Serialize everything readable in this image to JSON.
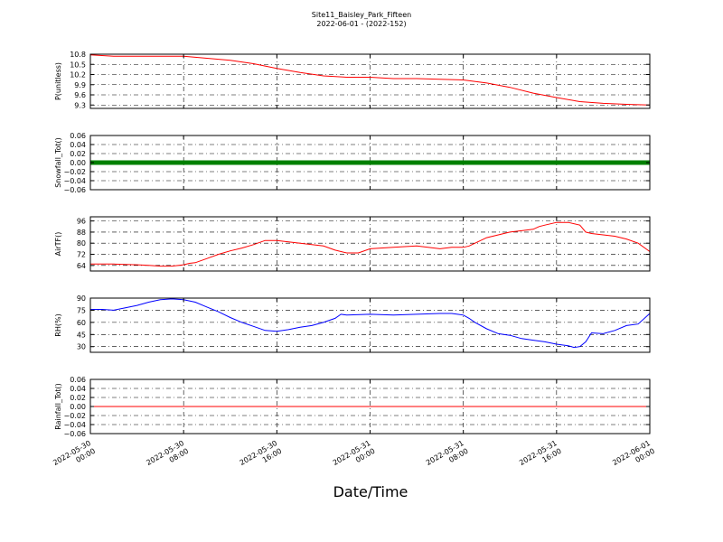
{
  "chart_data": {
    "type": "line",
    "title": "Site11_Baisley_Park_Fifteen",
    "subtitle": "2022-06-01 - (2022-152)",
    "xlabel": "Date/Time",
    "xlim_hours": [
      0,
      48
    ],
    "x_ticks": [
      {
        "h": 0,
        "l1": "2022-05-30",
        "l2": "00:00"
      },
      {
        "h": 8,
        "l1": "2022-05-30",
        "l2": "08:00"
      },
      {
        "h": 16,
        "l1": "2022-05-30",
        "l2": "16:00"
      },
      {
        "h": 24,
        "l1": "2022-05-31",
        "l2": "00:00"
      },
      {
        "h": 32,
        "l1": "2022-05-31",
        "l2": "08:00"
      },
      {
        "h": 40,
        "l1": "2022-05-31",
        "l2": "16:00"
      },
      {
        "h": 48,
        "l1": "2022-06-01",
        "l2": "00:00"
      }
    ],
    "grid": true,
    "panels": [
      {
        "ylabel": "P(unitless)",
        "ylim": [
          9.2,
          10.8
        ],
        "yticks": [
          "10.8",
          "10.5",
          "10.2",
          "9.9",
          "9.6",
          "9.3"
        ],
        "ytick_values": [
          10.8,
          10.5,
          10.2,
          9.9,
          9.6,
          9.3
        ],
        "color": "#ff0000",
        "marker": false,
        "x": [
          0,
          1,
          2,
          4,
          6,
          8,
          10,
          12,
          14,
          16,
          18,
          20,
          22,
          24,
          26,
          28,
          30,
          32,
          34,
          36,
          38,
          40,
          42,
          44,
          46,
          48
        ],
        "y": [
          10.78,
          10.76,
          10.74,
          10.74,
          10.74,
          10.74,
          10.68,
          10.62,
          10.52,
          10.38,
          10.26,
          10.16,
          10.12,
          10.12,
          10.08,
          10.08,
          10.06,
          10.04,
          9.95,
          9.82,
          9.65,
          9.52,
          9.4,
          9.35,
          9.32,
          9.3
        ]
      },
      {
        "ylabel": "Snowfall_Tot()",
        "ylim": [
          -0.06,
          0.06
        ],
        "yticks": [
          "0.06",
          "0.04",
          "0.02",
          "0.00",
          "−0.02",
          "−0.04",
          "−0.06"
        ],
        "ytick_values": [
          0.06,
          0.04,
          0.02,
          0,
          -0.02,
          -0.04,
          -0.06
        ],
        "color": "#008000",
        "marker": true,
        "x": [
          0,
          48
        ],
        "y": [
          0,
          0
        ]
      },
      {
        "ylabel": "AirTF()",
        "ylim": [
          60,
          99
        ],
        "yticks": [
          "96",
          "88",
          "80",
          "72",
          "64"
        ],
        "ytick_values": [
          96,
          88,
          80,
          72,
          64
        ],
        "color": "#ff0000",
        "marker": false,
        "x": [
          0,
          2,
          4,
          5,
          6,
          7,
          8,
          8.5,
          9,
          10,
          11,
          12,
          13,
          14,
          15,
          16,
          17,
          18,
          19,
          20,
          21,
          22,
          23,
          24,
          26,
          28,
          30,
          31,
          32,
          32.5,
          33,
          34,
          35,
          36,
          37,
          38,
          38.5,
          39,
          39.5,
          40,
          41,
          42,
          42.5,
          43,
          44,
          45,
          46,
          47,
          48
        ],
        "y": [
          65,
          65,
          64.5,
          64,
          63.5,
          63.5,
          64.5,
          65.5,
          66,
          69,
          72,
          74.5,
          76.5,
          79,
          82,
          82,
          81,
          80,
          79,
          78,
          75,
          73,
          73,
          76,
          77,
          78,
          76,
          77,
          77,
          78,
          80,
          84,
          86,
          88,
          89,
          90,
          92,
          93,
          94,
          95,
          95,
          93,
          88,
          87,
          86,
          85,
          83,
          80,
          74
        ]
      },
      {
        "ylabel": "RH(%)",
        "ylim": [
          23,
          90
        ],
        "yticks": [
          "90",
          "75",
          "60",
          "45",
          "30"
        ],
        "ytick_values": [
          90,
          75,
          60,
          45,
          30
        ],
        "color": "#0000ff",
        "marker": false,
        "x": [
          0,
          1,
          2,
          3,
          4,
          5,
          6,
          7,
          8,
          9,
          10,
          11,
          12,
          13,
          14,
          15,
          16,
          17,
          18,
          19,
          20,
          21,
          21.5,
          22,
          24,
          26,
          28,
          30,
          31,
          32,
          32.5,
          33,
          34,
          35,
          36,
          37,
          38,
          39,
          40,
          41,
          41.5,
          42,
          42.5,
          43,
          44,
          45,
          46,
          47,
          48
        ],
        "y": [
          76,
          76,
          75,
          78,
          81,
          85,
          88,
          89,
          88,
          85,
          79,
          73,
          66,
          60,
          55,
          50,
          49,
          51,
          54,
          56,
          60,
          65,
          70,
          69,
          70,
          69,
          70,
          71,
          71,
          69,
          65,
          60,
          52,
          46,
          44,
          40,
          38,
          36,
          33,
          31,
          29,
          30,
          36,
          47,
          46,
          50,
          56,
          58,
          71
        ]
      },
      {
        "ylabel": "Rainfall_Tot()",
        "ylim": [
          -0.06,
          0.06
        ],
        "yticks": [
          "0.06",
          "0.04",
          "0.02",
          "0.00",
          "−0.02",
          "−0.04",
          "−0.06"
        ],
        "ytick_values": [
          0.06,
          0.04,
          0.02,
          0,
          -0.02,
          -0.04,
          -0.06
        ],
        "color": "#ff0000",
        "marker": false,
        "x": [
          0,
          48
        ],
        "y": [
          0,
          0
        ]
      }
    ]
  }
}
